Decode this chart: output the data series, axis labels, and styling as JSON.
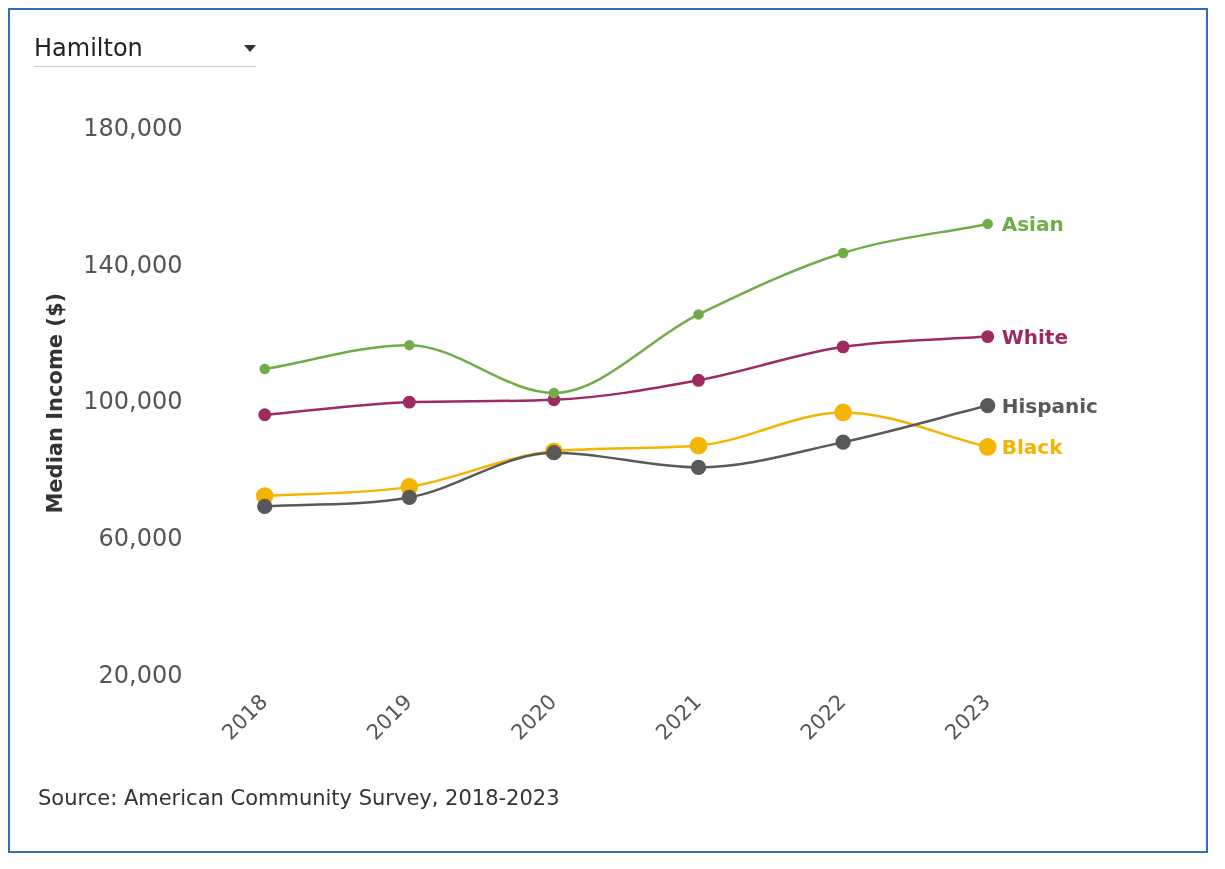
{
  "chart_data": {
    "type": "line",
    "title": "Hamilton",
    "ylabel": "Median Income ($)",
    "categories": [
      "2018",
      "2019",
      "2020",
      "2021",
      "2022",
      "2023"
    ],
    "series": [
      {
        "name": "Asian",
        "color": "#70ad47",
        "values": [
          110000,
          117000,
          103000,
          126000,
          144000,
          152500
        ]
      },
      {
        "name": "White",
        "color": "#9e2a62",
        "values": [
          96600,
          100300,
          101000,
          106700,
          116500,
          119500
        ]
      },
      {
        "name": "Hispanic",
        "color": "#595959",
        "values": [
          69800,
          72400,
          85500,
          81200,
          88600,
          99300
        ]
      },
      {
        "name": "Black",
        "color": "#f5b400",
        "values": [
          72800,
          75500,
          85900,
          87600,
          97300,
          87200
        ]
      }
    ],
    "ylim": [
      20000,
      180000
    ],
    "yticks": [
      {
        "value": 20000,
        "label": "20,000"
      },
      {
        "value": 60000,
        "label": "60,000"
      },
      {
        "value": 100000,
        "label": "100,000"
      },
      {
        "value": 140000,
        "label": "140,000"
      },
      {
        "value": 180000,
        "label": "180,000"
      }
    ],
    "grid": false,
    "legend": false,
    "marker": "circle",
    "line_style": "solid",
    "annotations": [
      "Source: American Community Survey, 2018-2023"
    ]
  }
}
